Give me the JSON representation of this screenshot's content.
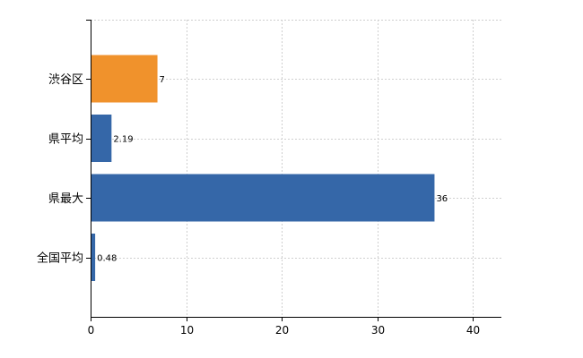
{
  "chart_data": {
    "type": "bar",
    "orientation": "horizontal",
    "categories": [
      "渋谷区",
      "県平均",
      "県最大",
      "全国平均"
    ],
    "values": [
      7,
      2.19,
      36,
      0.48
    ],
    "value_labels": [
      "7",
      "2.19",
      "36",
      "0.48"
    ],
    "bar_colors": [
      "#f0922c",
      "#3567a8",
      "#3567a8",
      "#3567a8"
    ],
    "title": "",
    "xlabel": "",
    "ylabel": "",
    "xlim": [
      0,
      43
    ],
    "xticks": [
      0,
      10,
      20,
      30,
      40
    ],
    "grid": true,
    "legend": "none"
  }
}
